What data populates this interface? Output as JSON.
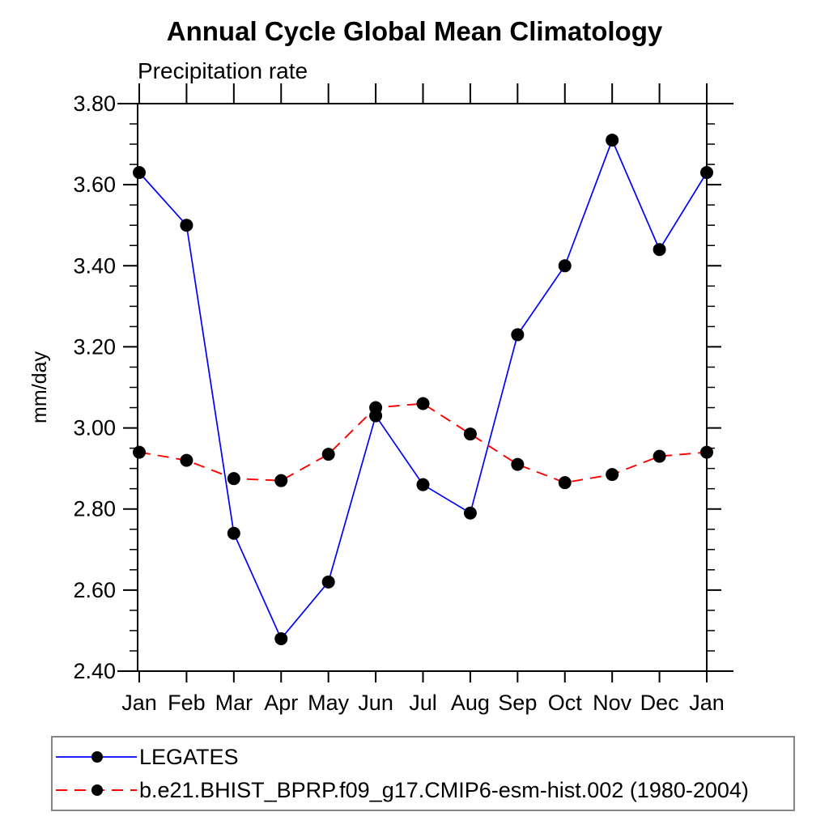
{
  "page": {
    "background": "#ffffff"
  },
  "chart_data": {
    "type": "line",
    "title": "Annual Cycle Global Mean Climatology",
    "subtitle": "Precipitation rate",
    "ylabel": "mm/day",
    "xlabel": "",
    "categories": [
      "Jan",
      "Feb",
      "Mar",
      "Apr",
      "May",
      "Jun",
      "Jul",
      "Aug",
      "Sep",
      "Oct",
      "Nov",
      "Dec",
      "Jan"
    ],
    "ylim": [
      2.4,
      3.8
    ],
    "ytick_step": 0.2,
    "ytick_minor_step": 0.05,
    "ytick_labels": [
      "2.40",
      "2.60",
      "2.80",
      "3.00",
      "3.20",
      "3.40",
      "3.60",
      "3.80"
    ],
    "grid": false,
    "legend_position": "bottom-left-box",
    "axis_color": "#000000",
    "legend_border_color": "#858585",
    "series": [
      {
        "name": "LEGATES",
        "color": "#0000ff",
        "style": "solid",
        "marker": "filled-circle",
        "marker_color": "#000000",
        "values": [
          3.63,
          3.5,
          2.74,
          2.48,
          2.62,
          3.03,
          2.86,
          2.79,
          3.23,
          3.4,
          3.71,
          3.44,
          3.63
        ]
      },
      {
        "name": "b.e21.BHIST_BPRP.f09_g17.CMIP6-esm-hist.002 (1980-2004)",
        "color": "#ff0000",
        "style": "dashed",
        "marker": "filled-circle",
        "marker_color": "#000000",
        "values": [
          2.94,
          2.92,
          2.875,
          2.87,
          2.935,
          3.05,
          3.06,
          2.985,
          2.91,
          2.865,
          2.885,
          2.93,
          2.94
        ]
      }
    ]
  }
}
